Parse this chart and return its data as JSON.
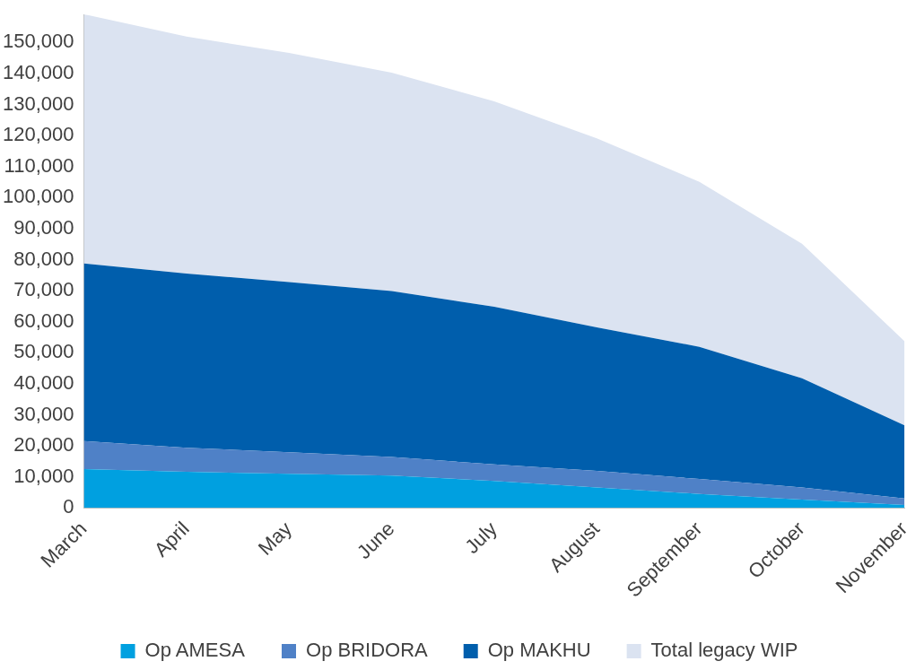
{
  "chart_data": {
    "type": "area",
    "stacked": true,
    "categories": [
      "March",
      "April",
      "May",
      "June",
      "July",
      "August",
      "September",
      "October",
      "November"
    ],
    "series": [
      {
        "name": "Op AMESA",
        "color": "#00a0e0",
        "values": [
          12500,
          11600,
          11000,
          10400,
          8700,
          6600,
          4500,
          2700,
          900
        ]
      },
      {
        "name": "Op BRIDORA",
        "color": "#4f81c7",
        "values": [
          9000,
          7800,
          6900,
          6000,
          5300,
          5300,
          4800,
          3900,
          2100
        ]
      },
      {
        "name": "Op MAKHU",
        "color": "#005eac",
        "values": [
          57300,
          56100,
          54900,
          53500,
          50800,
          46300,
          42600,
          35200,
          23600
        ]
      },
      {
        "name": "Total legacy WIP",
        "color": "#dbe3f1",
        "values": [
          80300,
          76400,
          73800,
          70400,
          66200,
          60900,
          53200,
          43300,
          27100
        ]
      }
    ],
    "ylim": [
      0,
      159000
    ],
    "yticks": [
      0,
      {
        "value": 10000,
        "label": "10,000"
      },
      {
        "value": 20000,
        "label": "20,000"
      },
      {
        "value": 30000,
        "label": "30,000"
      },
      {
        "value": 40000,
        "label": "40,000"
      },
      {
        "value": 50000,
        "label": "50,000"
      },
      {
        "value": 60000,
        "label": "60,000"
      },
      {
        "value": 70000,
        "label": "70,000"
      },
      {
        "value": 80000,
        "label": "80,000"
      },
      {
        "value": 90000,
        "label": "90,000"
      },
      {
        "value": 100000,
        "label": "100,000"
      },
      {
        "value": 110000,
        "label": "110,000"
      },
      {
        "value": 120000,
        "label": "120,000"
      },
      {
        "value": 130000,
        "label": "130,000"
      },
      {
        "value": 140000,
        "label": "140,000"
      },
      {
        "value": 150000,
        "label": "150,000"
      }
    ],
    "grid": false,
    "legend": "bottom"
  }
}
